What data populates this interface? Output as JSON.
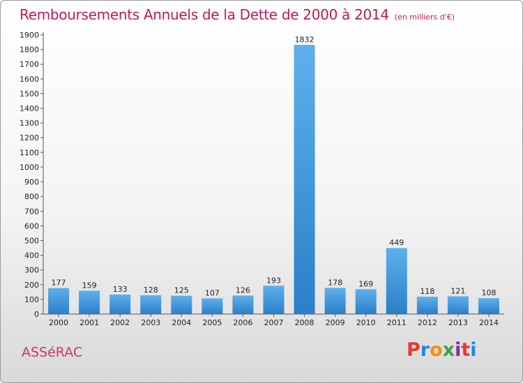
{
  "header": {
    "title": "Remboursements Annuels de la Dette de 2000 à 2014",
    "unit": "(en milliers d'€)"
  },
  "footer": {
    "city": "ASSéRAC",
    "logo_letters": [
      "P",
      "r",
      "o",
      "x",
      "i",
      "t",
      "i"
    ],
    "logo_colors": [
      "#e53935",
      "#1e88e5",
      "#fb8c00",
      "#43a047",
      "#8e24aa",
      "#e53935",
      "#1e88e5"
    ]
  },
  "chart_data": {
    "type": "bar",
    "title": "Remboursements Annuels de la Dette de 2000 à 2014",
    "xlabel": "",
    "ylabel": "",
    "categories": [
      "2000",
      "2001",
      "2002",
      "2003",
      "2004",
      "2005",
      "2006",
      "2007",
      "2008",
      "2009",
      "2010",
      "2011",
      "2012",
      "2013",
      "2014"
    ],
    "values": [
      177,
      159,
      133,
      128,
      125,
      107,
      126,
      193,
      1832,
      178,
      169,
      449,
      118,
      121,
      108
    ],
    "ylim": [
      0,
      1900
    ],
    "yticks": [
      0,
      100,
      200,
      300,
      400,
      500,
      600,
      700,
      800,
      900,
      1000,
      1100,
      1200,
      1300,
      1400,
      1500,
      1600,
      1700,
      1800,
      1900
    ],
    "grid": false,
    "legend": "none",
    "bar_color": "#3d96dc"
  }
}
